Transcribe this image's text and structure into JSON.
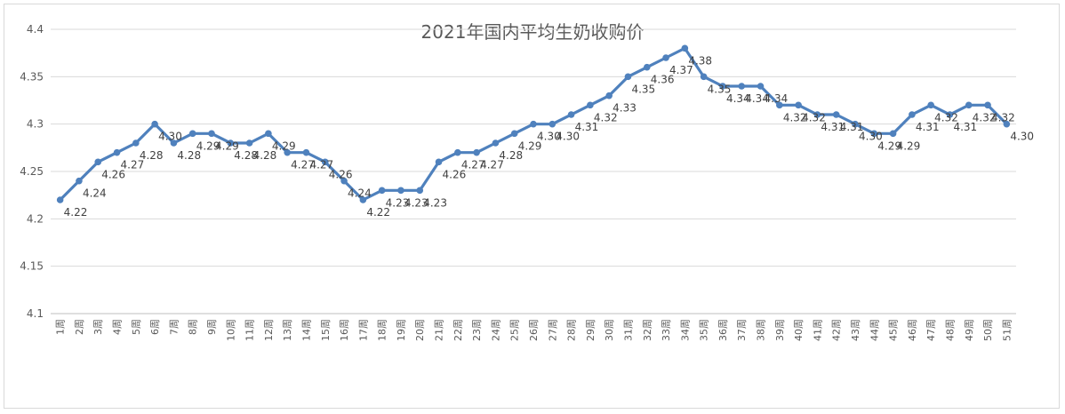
{
  "chart_data": {
    "type": "line",
    "title": "2021年国内平均生奶收购价",
    "xlabel": "",
    "ylabel": "",
    "ylim": [
      4.1,
      4.4
    ],
    "y_ticks": [
      "4.1",
      "4.15",
      "4.2",
      "4.25",
      "4.3",
      "4.35",
      "4.4"
    ],
    "grid": "horizontal",
    "legend": "none",
    "series_color": "#4f81bd",
    "categories": [
      "1周",
      "2周",
      "3周",
      "4周",
      "5周",
      "6周",
      "7周",
      "8周",
      "9周",
      "10周",
      "11周",
      "12周",
      "13周",
      "14周",
      "15周",
      "16周",
      "17周",
      "18周",
      "19周",
      "20周",
      "21周",
      "22周",
      "23周",
      "24周",
      "25周",
      "26周",
      "27周",
      "28周",
      "29周",
      "30周",
      "31周",
      "32周",
      "33周",
      "34周",
      "35周",
      "36周",
      "37周",
      "38周",
      "39周",
      "40周",
      "41周",
      "42周",
      "43周",
      "44周",
      "45周",
      "46周",
      "47周",
      "48周",
      "49周",
      "50周",
      "51周"
    ],
    "values": [
      4.22,
      4.24,
      4.26,
      4.27,
      4.28,
      4.3,
      4.28,
      4.29,
      4.29,
      4.28,
      4.28,
      4.29,
      4.27,
      4.27,
      4.26,
      4.24,
      4.22,
      4.23,
      4.23,
      4.23,
      4.26,
      4.27,
      4.27,
      4.28,
      4.29,
      4.3,
      4.3,
      4.31,
      4.32,
      4.33,
      4.35,
      4.36,
      4.37,
      4.38,
      4.35,
      4.34,
      4.34,
      4.34,
      4.32,
      4.32,
      4.31,
      4.31,
      4.3,
      4.29,
      4.29,
      4.31,
      4.32,
      4.31,
      4.32,
      4.32,
      4.3
    ],
    "data_labels": [
      "4.22",
      "4.24",
      "4.26",
      "4.27",
      "4.28",
      "4.30",
      "4.28",
      "4.29",
      "4.29",
      "4.28",
      "4.28",
      "4.29",
      "4.27",
      "4.27",
      "4.26",
      "4.24",
      "4.22",
      "4.23",
      "4.23",
      "4.23",
      "4.26",
      "4.27",
      "4.27",
      "4.28",
      "4.29",
      "4.30",
      "4.30",
      "4.31",
      "4.32",
      "4.33",
      "4.35",
      "4.36",
      "4.37",
      "4.38",
      "4.35",
      "4.34",
      "4.34",
      "4.34",
      "4.32",
      "4.32",
      "4.31",
      "4.31",
      "4.30",
      "4.29",
      "4.29",
      "4.31",
      "4.32",
      "4.31",
      "4.32",
      "4.32",
      "4.30"
    ]
  }
}
